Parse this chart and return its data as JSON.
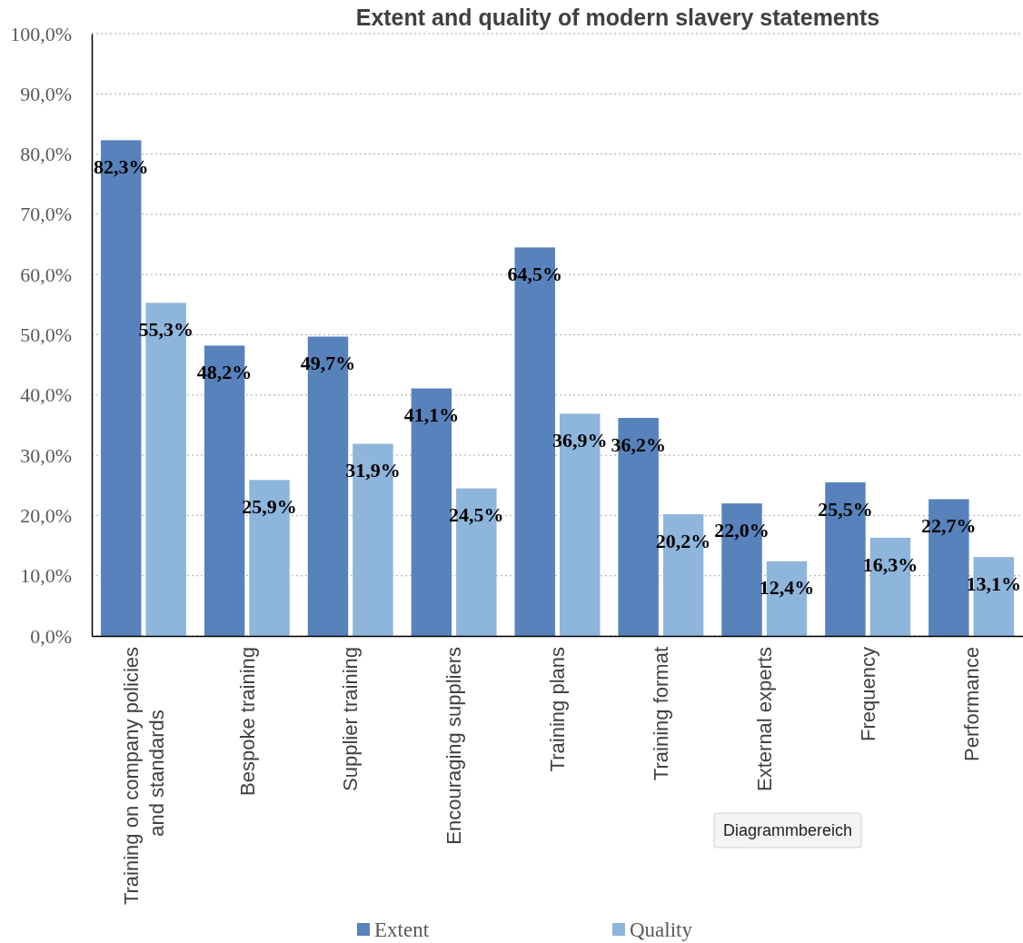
{
  "chart_data": {
    "type": "bar",
    "title": "Extent and quality of modern slavery statements",
    "categories": [
      "Training on company policies and standards",
      "Bespoke training",
      "Supplier training",
      "Encouraging suppliers",
      "Training plans",
      "Training format",
      "External experts",
      "Frequency",
      "Performance"
    ],
    "series": [
      {
        "name": "Extent",
        "color": "#5882bb",
        "values": [
          82.3,
          48.2,
          49.7,
          41.1,
          64.5,
          36.2,
          22.0,
          25.5,
          22.7
        ],
        "value_labels": [
          "82,3%",
          "48,2%",
          "49,7%",
          "41,1%",
          "64,5%",
          "36,2%",
          "22,0%",
          "25,5%",
          "22,7%"
        ]
      },
      {
        "name": "Quality",
        "color": "#8eb5db",
        "values": [
          55.3,
          25.9,
          31.9,
          24.5,
          36.9,
          20.2,
          12.4,
          16.3,
          13.1
        ],
        "value_labels": [
          "55,3%",
          "25,9%",
          "31,9%",
          "24,5%",
          "36,9%",
          "20,2%",
          "12,4%",
          "16,3%",
          "13,1%"
        ]
      }
    ],
    "ylim": [
      0,
      100
    ],
    "yticks": [
      {
        "value": 0,
        "label": "0,0%"
      },
      {
        "value": 10,
        "label": "10,0%"
      },
      {
        "value": 20,
        "label": "20,0%"
      },
      {
        "value": 30,
        "label": "30,0%"
      },
      {
        "value": 40,
        "label": "40,0%"
      },
      {
        "value": 50,
        "label": "50,0%"
      },
      {
        "value": 60,
        "label": "60,0%"
      },
      {
        "value": 70,
        "label": "70,0%"
      },
      {
        "value": 80,
        "label": "80,0%"
      },
      {
        "value": 90,
        "label": "90,0%"
      },
      {
        "value": 100,
        "label": "100,0%"
      }
    ],
    "grid": "y",
    "legend": "bottom",
    "annotations": [
      "Diagrammbereich"
    ]
  }
}
